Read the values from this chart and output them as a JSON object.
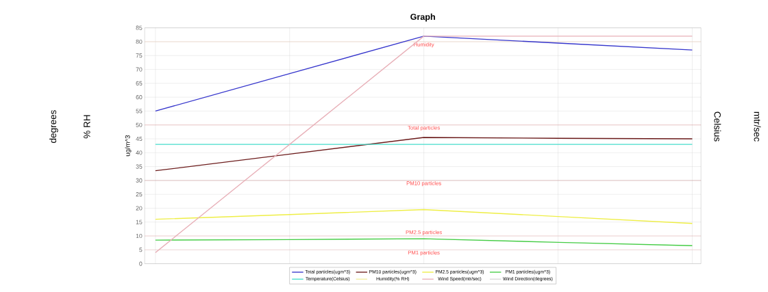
{
  "chart_data": {
    "type": "line",
    "title": "Graph",
    "ylabel": "ug/m^3",
    "categories": [
      null,
      null,
      null,
      null,
      null
    ],
    "series": [
      {
        "name": "Total particles(ugm^3)",
        "color": "#3535cc",
        "values": [
          55,
          68.5,
          82,
          79.5,
          77
        ]
      },
      {
        "name": "PM10 particles(ugm^3)",
        "color": "#6b1a1a",
        "values": [
          33.5,
          39.5,
          45.5,
          45.2,
          45
        ]
      },
      {
        "name": "PM2.5 particles(ugm^3)",
        "color": "#eeee44",
        "values": [
          16,
          17.7,
          19.5,
          17,
          14.5
        ]
      },
      {
        "name": "PM1 particles(ugm^3)",
        "color": "#44cc44",
        "values": [
          8.5,
          8.7,
          9,
          7.7,
          6.5
        ]
      },
      {
        "name": "Temperature(Celsius)",
        "color": "#44ddcc",
        "values": [
          43,
          43,
          43,
          43,
          43
        ]
      },
      {
        "name": "Humidity(% RH)",
        "color": "#f2eea0",
        "values": [
          null,
          null,
          null,
          null,
          null
        ]
      },
      {
        "name": "Wind Speed(mtr/sec)",
        "color": "#e8b0b8",
        "values": [
          4,
          43,
          82,
          82,
          82
        ]
      },
      {
        "name": "Wind Direction(degrees)",
        "color": "#d8d8d8",
        "values": [
          null,
          null,
          null,
          null,
          null
        ]
      }
    ],
    "ylim": [
      0,
      85
    ],
    "yticks": [
      0,
      5,
      10,
      15,
      20,
      25,
      30,
      35,
      40,
      45,
      50,
      55,
      60,
      65,
      70,
      75,
      80,
      85
    ],
    "grid": true,
    "legend": "bottom",
    "marker": "none",
    "line_style": "solid",
    "ref_lines": [
      {
        "axis": "y",
        "value": 80,
        "label": "Humidity",
        "color": "#f0c0a0"
      },
      {
        "axis": "y",
        "value": 50,
        "label": "Total particles",
        "color": "#e08080"
      },
      {
        "axis": "y",
        "value": 30,
        "label": "PM10 particles",
        "color": "#c07070"
      },
      {
        "axis": "y",
        "value": 10,
        "label": "PM2.5 particles",
        "color": "#f0a0a0"
      },
      {
        "axis": "y",
        "value": 5,
        "label": "PM1 particles",
        "color": "#f0b0b0"
      }
    ],
    "annotations": [
      "degrees",
      "% RH",
      "Celsius",
      "mtr/sec"
    ]
  }
}
